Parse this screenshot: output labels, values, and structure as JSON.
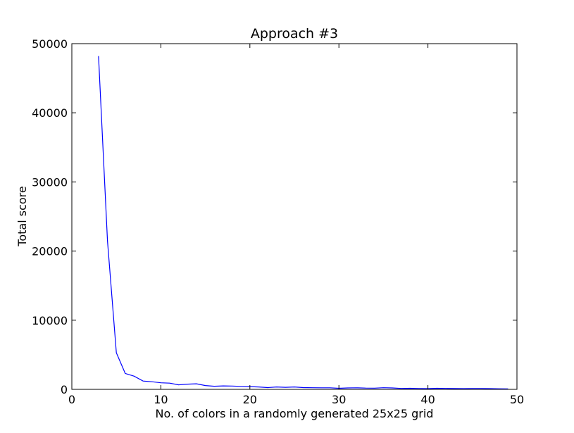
{
  "chart_data": {
    "type": "line",
    "title": "Approach #3",
    "xlabel": "No. of colors in a randomly generated 25x25 grid",
    "ylabel": "Total score",
    "xlim": [
      0,
      50
    ],
    "ylim": [
      0,
      50000
    ],
    "xticks": [
      "0",
      "10",
      "20",
      "30",
      "40",
      "50"
    ],
    "yticks": [
      "0",
      "10000",
      "20000",
      "30000",
      "40000",
      "50000"
    ],
    "grid": false,
    "line_color": "#0000ff",
    "series": [
      {
        "x": [
          3,
          4,
          5,
          6,
          7,
          8,
          9,
          10,
          11,
          12,
          13,
          14,
          15,
          16,
          17,
          18,
          19,
          20,
          21,
          22,
          23,
          24,
          25,
          26,
          27,
          28,
          29,
          30,
          31,
          32,
          33,
          34,
          35,
          36,
          37,
          38,
          39,
          40,
          41,
          42,
          43,
          44,
          45,
          46,
          47,
          48,
          49
        ],
        "values": [
          48200,
          21500,
          5300,
          2300,
          1900,
          1200,
          1100,
          950,
          900,
          650,
          750,
          800,
          550,
          450,
          500,
          480,
          430,
          400,
          350,
          250,
          350,
          300,
          350,
          250,
          230,
          220,
          220,
          150,
          200,
          220,
          180,
          170,
          230,
          200,
          130,
          150,
          120,
          100,
          150,
          130,
          110,
          100,
          120,
          120,
          100,
          80,
          60
        ]
      }
    ]
  }
}
